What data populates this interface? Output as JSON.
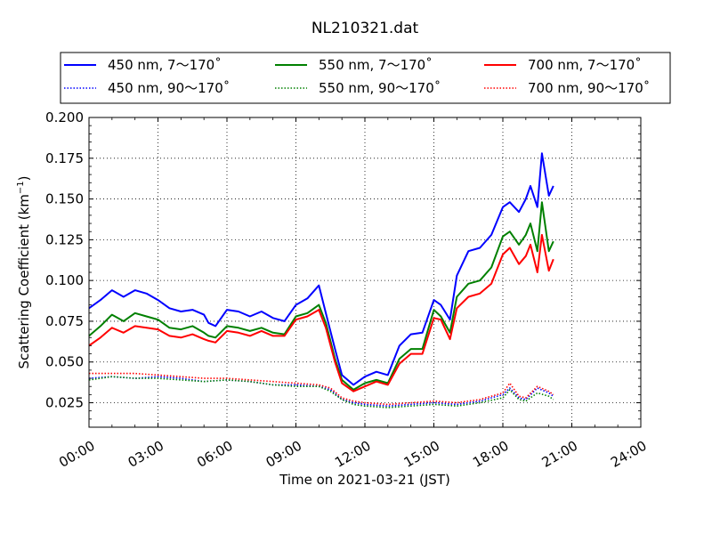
{
  "chart_data": {
    "type": "line",
    "title": "NL210321.dat",
    "xlabel": "Time on 2021-03-21 (JST)",
    "ylabel_main": "Scattering Coefficient (km",
    "ylabel_sup": "−1",
    "ylabel_close": ")",
    "x_unit": "hours since 00:00 on 2021-03-21",
    "xlim": [
      0,
      24
    ],
    "ylim": [
      0.01,
      0.2
    ],
    "x_ticks": [
      0,
      3,
      6,
      9,
      12,
      15,
      18,
      21,
      24
    ],
    "x_tick_labels": [
      "00:00",
      "03:00",
      "06:00",
      "09:00",
      "12:00",
      "15:00",
      "18:00",
      "21:00",
      "24:00"
    ],
    "y_ticks": [
      0.025,
      0.05,
      0.075,
      0.1,
      0.125,
      0.15,
      0.175,
      0.2
    ],
    "y_tick_labels": [
      "0.025",
      "0.050",
      "0.075",
      "0.100",
      "0.125",
      "0.150",
      "0.175",
      "0.200"
    ],
    "grid": true,
    "legend_position": "top, above plot",
    "series": [
      {
        "name": "450 nm, 7～170˚",
        "color": "#0000ff",
        "style": "solid",
        "x": [
          0,
          0.5,
          1,
          1.5,
          2,
          2.5,
          3,
          3.5,
          4,
          4.5,
          5,
          5.2,
          5.5,
          6,
          6.5,
          7,
          7.5,
          8,
          8.5,
          9,
          9.5,
          10,
          10.3,
          10.7,
          11,
          11.5,
          12,
          12.5,
          13,
          13.5,
          14,
          14.5,
          15,
          15.3,
          15.7,
          16,
          16.5,
          17,
          17.5,
          18,
          18.3,
          18.7,
          19,
          19.2,
          19.5,
          19.7,
          20,
          20.2
        ],
        "y": [
          0.083,
          0.088,
          0.094,
          0.09,
          0.094,
          0.092,
          0.088,
          0.083,
          0.081,
          0.082,
          0.079,
          0.074,
          0.072,
          0.082,
          0.081,
          0.078,
          0.081,
          0.077,
          0.075,
          0.085,
          0.089,
          0.097,
          0.08,
          0.058,
          0.042,
          0.036,
          0.041,
          0.044,
          0.042,
          0.06,
          0.067,
          0.068,
          0.088,
          0.085,
          0.076,
          0.103,
          0.118,
          0.12,
          0.128,
          0.145,
          0.148,
          0.142,
          0.15,
          0.158,
          0.145,
          0.178,
          0.152,
          0.158
        ]
      },
      {
        "name": "550 nm, 7～170˚",
        "color": "#008000",
        "style": "solid",
        "x": [
          0,
          0.5,
          1,
          1.5,
          2,
          2.5,
          3,
          3.5,
          4,
          4.5,
          5,
          5.2,
          5.5,
          6,
          6.5,
          7,
          7.5,
          8,
          8.5,
          9,
          9.5,
          10,
          10.3,
          10.7,
          11,
          11.5,
          12,
          12.5,
          13,
          13.5,
          14,
          14.5,
          15,
          15.3,
          15.7,
          16,
          16.5,
          17,
          17.5,
          18,
          18.3,
          18.7,
          19,
          19.2,
          19.5,
          19.7,
          20,
          20.2
        ],
        "y": [
          0.066,
          0.072,
          0.079,
          0.075,
          0.08,
          0.078,
          0.076,
          0.071,
          0.07,
          0.072,
          0.068,
          0.066,
          0.065,
          0.072,
          0.071,
          0.069,
          0.071,
          0.068,
          0.067,
          0.078,
          0.08,
          0.085,
          0.074,
          0.052,
          0.039,
          0.033,
          0.037,
          0.039,
          0.037,
          0.052,
          0.058,
          0.058,
          0.082,
          0.078,
          0.068,
          0.09,
          0.098,
          0.1,
          0.108,
          0.127,
          0.13,
          0.122,
          0.128,
          0.135,
          0.118,
          0.148,
          0.118,
          0.124
        ]
      },
      {
        "name": "700 nm, 7～170˚",
        "color": "#ff0000",
        "style": "solid",
        "x": [
          0,
          0.5,
          1,
          1.5,
          2,
          2.5,
          3,
          3.5,
          4,
          4.5,
          5,
          5.2,
          5.5,
          6,
          6.5,
          7,
          7.5,
          8,
          8.5,
          9,
          9.5,
          10,
          10.3,
          10.7,
          11,
          11.5,
          12,
          12.5,
          13,
          13.5,
          14,
          14.5,
          15,
          15.3,
          15.7,
          16,
          16.5,
          17,
          17.5,
          18,
          18.3,
          18.7,
          19,
          19.2,
          19.5,
          19.7,
          20,
          20.2
        ],
        "y": [
          0.06,
          0.065,
          0.071,
          0.068,
          0.072,
          0.071,
          0.07,
          0.066,
          0.065,
          0.067,
          0.064,
          0.063,
          0.062,
          0.069,
          0.068,
          0.066,
          0.069,
          0.066,
          0.066,
          0.076,
          0.078,
          0.082,
          0.071,
          0.05,
          0.037,
          0.032,
          0.035,
          0.038,
          0.036,
          0.049,
          0.055,
          0.055,
          0.077,
          0.076,
          0.064,
          0.083,
          0.09,
          0.092,
          0.098,
          0.116,
          0.12,
          0.11,
          0.115,
          0.122,
          0.105,
          0.128,
          0.106,
          0.113
        ]
      },
      {
        "name": "450 nm, 90～170˚",
        "color": "#0000ff",
        "style": "dotted",
        "x": [
          0,
          1,
          2,
          3,
          4,
          5,
          6,
          7,
          8,
          9,
          10,
          10.5,
          11,
          11.5,
          12,
          13,
          14,
          15,
          16,
          17,
          18,
          18.3,
          18.7,
          19,
          19.5,
          20,
          20.2
        ],
        "y": [
          0.04,
          0.041,
          0.04,
          0.041,
          0.04,
          0.038,
          0.039,
          0.038,
          0.036,
          0.036,
          0.035,
          0.033,
          0.027,
          0.025,
          0.024,
          0.023,
          0.024,
          0.025,
          0.024,
          0.026,
          0.03,
          0.034,
          0.028,
          0.027,
          0.034,
          0.031,
          0.029
        ]
      },
      {
        "name": "550 nm, 90～170˚",
        "color": "#008000",
        "style": "dotted",
        "x": [
          0,
          1,
          2,
          3,
          4,
          5,
          6,
          7,
          8,
          9,
          10,
          10.5,
          11,
          11.5,
          12,
          13,
          14,
          15,
          16,
          17,
          18,
          18.3,
          18.7,
          19,
          19.5,
          20,
          20.2
        ],
        "y": [
          0.039,
          0.041,
          0.04,
          0.04,
          0.039,
          0.038,
          0.039,
          0.038,
          0.036,
          0.035,
          0.035,
          0.032,
          0.027,
          0.024,
          0.023,
          0.022,
          0.023,
          0.024,
          0.023,
          0.025,
          0.028,
          0.033,
          0.027,
          0.026,
          0.031,
          0.029,
          0.027
        ]
      },
      {
        "name": "700 nm, 90～170˚",
        "color": "#ff0000",
        "style": "dotted",
        "x": [
          0,
          1,
          2,
          3,
          4,
          5,
          6,
          7,
          8,
          9,
          10,
          10.5,
          11,
          11.5,
          12,
          13,
          14,
          15,
          16,
          17,
          18,
          18.3,
          18.7,
          19,
          19.5,
          20,
          20.2
        ],
        "y": [
          0.043,
          0.043,
          0.043,
          0.042,
          0.041,
          0.04,
          0.04,
          0.039,
          0.038,
          0.037,
          0.036,
          0.034,
          0.028,
          0.026,
          0.025,
          0.024,
          0.025,
          0.026,
          0.025,
          0.027,
          0.031,
          0.037,
          0.029,
          0.028,
          0.035,
          0.032,
          0.03
        ]
      }
    ]
  }
}
